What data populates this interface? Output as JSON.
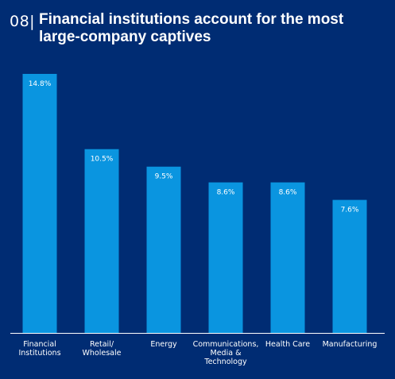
{
  "header": {
    "figure_number": "08|",
    "title": "Financial institutions account for the most large-company captives"
  },
  "colors": {
    "background": "#002c73",
    "bar": "#0a95e0",
    "axis": "#ffffff",
    "text": "#ffffff"
  },
  "chart_data": {
    "type": "bar",
    "title": "Financial institutions account for the most large-company captives",
    "xlabel": "",
    "ylabel": "",
    "categories": [
      [
        "Financial",
        "Institutions"
      ],
      [
        "Retail/",
        "Wholesale"
      ],
      [
        "Energy"
      ],
      [
        "Communications,",
        "Media &",
        "Technology"
      ],
      [
        "Health Care"
      ],
      [
        "Manufacturing"
      ]
    ],
    "values": [
      14.8,
      10.5,
      9.5,
      8.6,
      8.6,
      7.6
    ],
    "value_labels": [
      "14.8%",
      "10.5%",
      "9.5%",
      "8.6%",
      "8.6%",
      "7.6%"
    ],
    "ylim": [
      0,
      14.8
    ],
    "grid": false,
    "legend": "none"
  }
}
